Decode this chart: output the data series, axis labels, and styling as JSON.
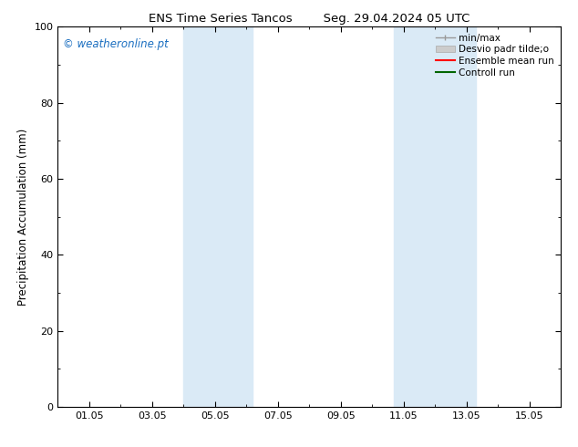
{
  "title": "ENS Time Series Tancos        Seg. 29.04.2024 05 UTC",
  "ylabel": "Precipitation Accumulation (mm)",
  "xlim": [
    0,
    16
  ],
  "ylim": [
    0,
    100
  ],
  "yticks": [
    0,
    20,
    40,
    60,
    80,
    100
  ],
  "xtick_labels": [
    "01.05",
    "03.05",
    "05.05",
    "07.05",
    "09.05",
    "11.05",
    "13.05",
    "15.05"
  ],
  "xtick_positions": [
    1,
    3,
    5,
    7,
    9,
    11,
    13,
    15
  ],
  "shaded_bands": [
    {
      "x_start": 4.0,
      "x_end": 6.2
    },
    {
      "x_start": 10.7,
      "x_end": 13.3
    }
  ],
  "shaded_color": "#daeaf6",
  "shaded_alpha": 1.0,
  "background_color": "#ffffff",
  "plot_bg_color": "#ffffff",
  "watermark_text": "© weatheronline.pt",
  "watermark_color": "#1a6ec0",
  "legend_labels": [
    "min/max",
    "Desvio padr tilde;o",
    "Ensemble mean run",
    "Controll run"
  ],
  "legend_colors": [
    "#999999",
    "#cccccc",
    "#ff0000",
    "#006600"
  ],
  "grid_on": false,
  "tick_color": "#000000",
  "axis_linewidth": 0.8,
  "figsize": [
    6.34,
    4.9
  ],
  "dpi": 100,
  "title_fontsize": 9.5,
  "label_fontsize": 8.5,
  "tick_fontsize": 8,
  "legend_fontsize": 7.5
}
